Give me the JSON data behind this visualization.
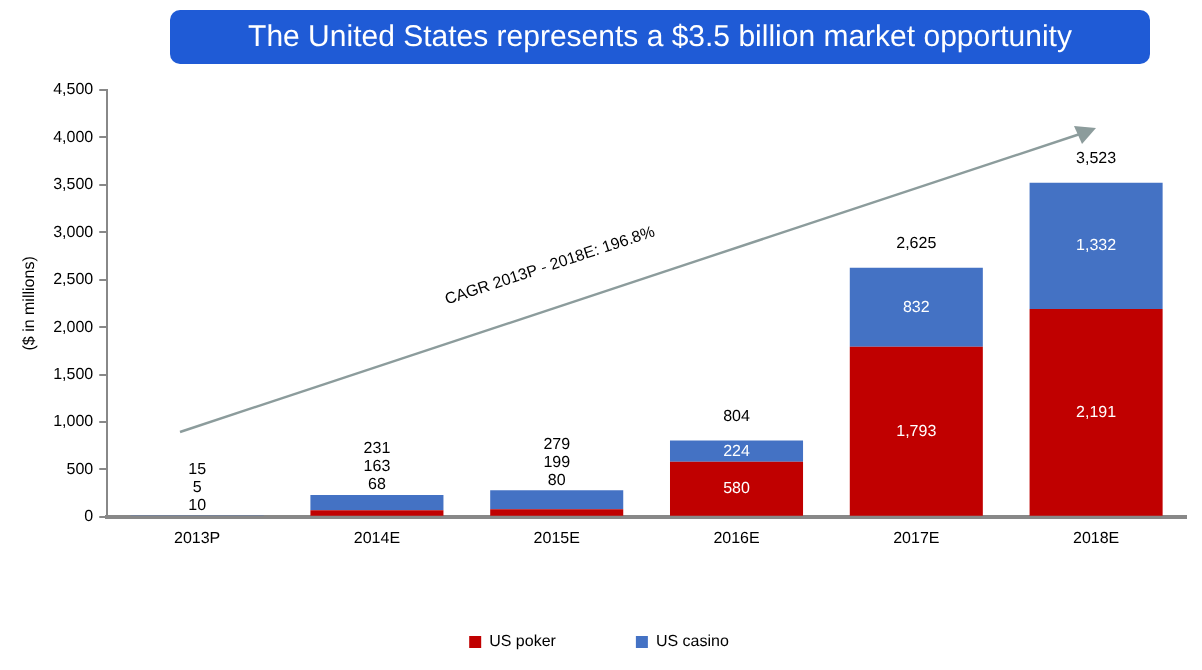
{
  "chart_data": {
    "type": "bar",
    "title": "The United States represents a $3.5 billion market opportunity",
    "ylabel": "($ in millions)",
    "categories": [
      "2013P",
      "2014E",
      "2015E",
      "2016E",
      "2017E",
      "2018E"
    ],
    "series": [
      {
        "name": "US poker",
        "color": "#c00000",
        "values": [
          10,
          68,
          80,
          580,
          1793,
          2191
        ],
        "value_labels": [
          "10",
          "68",
          "80",
          "580",
          "1,793",
          "2,191"
        ]
      },
      {
        "name": "US casino",
        "color": "#4472c4",
        "values": [
          5,
          163,
          199,
          224,
          832,
          1332
        ],
        "value_labels": [
          "5",
          "163",
          "199",
          "224",
          "832",
          "1,332"
        ]
      }
    ],
    "stacked": true,
    "totals": [
      "15",
      "231",
      "279",
      "804",
      "2,625",
      "3,523"
    ],
    "ylim": [
      0,
      4500
    ],
    "yticks": [
      0,
      500,
      {
        "value": 1000,
        "label": "1,000"
      },
      {
        "value": 1500,
        "label": "1,500"
      },
      {
        "value": 2000,
        "label": "2,000"
      },
      {
        "value": 2500,
        "label": "2,500"
      },
      {
        "value": 3000,
        "label": "3,000"
      },
      {
        "value": 3500,
        "label": "3,500"
      },
      {
        "value": 4000,
        "label": "4,000"
      },
      {
        "value": 4500,
        "label": "4,500"
      }
    ],
    "grid": false,
    "legend": "bottom",
    "annotations": [
      "CAGR 2013P - 2018E: 196.8%"
    ]
  }
}
